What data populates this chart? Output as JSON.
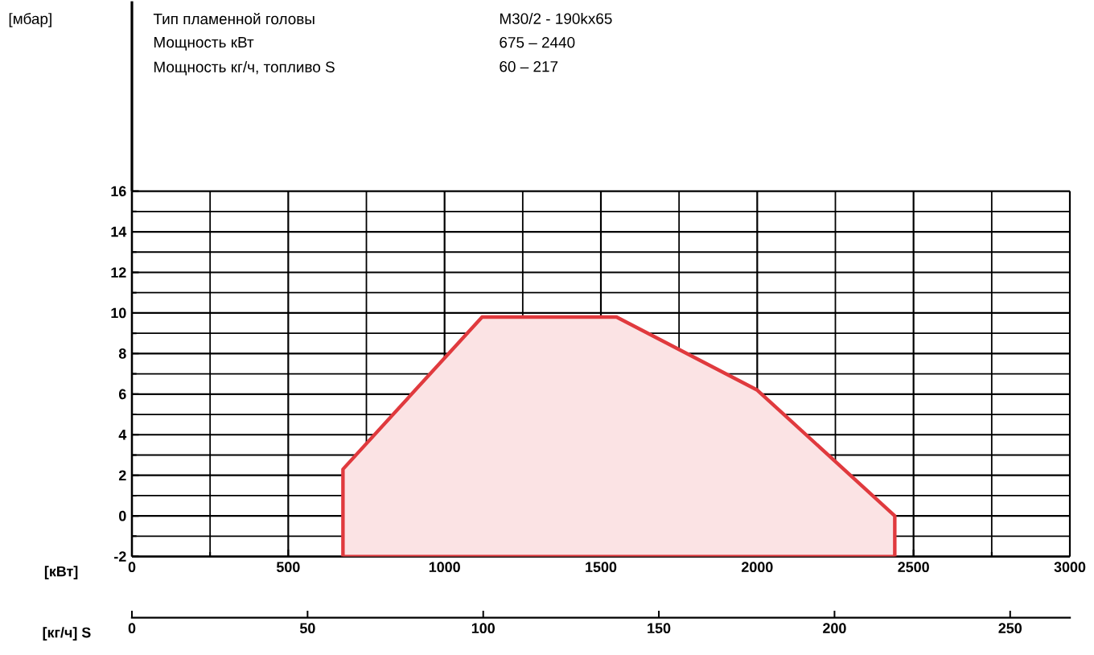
{
  "chart_data": {
    "type": "area",
    "xlabel": "[кВт]",
    "x2label": "[кг/ч] S",
    "annotations": [
      "[мбар]",
      "Тип пламенной головы",
      "M30/2 - 190kx65",
      "Мощность кВт",
      "675 – 2440",
      "Мощность кг/ч, топливо S",
      "60 – 217"
    ],
    "series": [
      {
        "color": "#e03a3e",
        "x": [
          675,
          675,
          1120,
          1550,
          2000,
          2440,
          2440
        ],
        "values": [
          -2,
          2.3,
          9.8,
          9.8,
          6.2,
          0,
          -2
        ]
      }
    ],
    "xlim": [
      0,
      3000
    ],
    "xticks": [
      0,
      500,
      1000,
      1500,
      2000,
      2500,
      3000
    ],
    "ylim": [
      -2,
      16
    ],
    "yticks": [
      -2,
      0,
      2,
      4,
      6,
      8,
      10,
      12,
      14,
      16
    ],
    "x2lim": [
      0,
      267
    ],
    "x2ticks": [
      0,
      50,
      100,
      150,
      200,
      250
    ],
    "grid": true
  }
}
